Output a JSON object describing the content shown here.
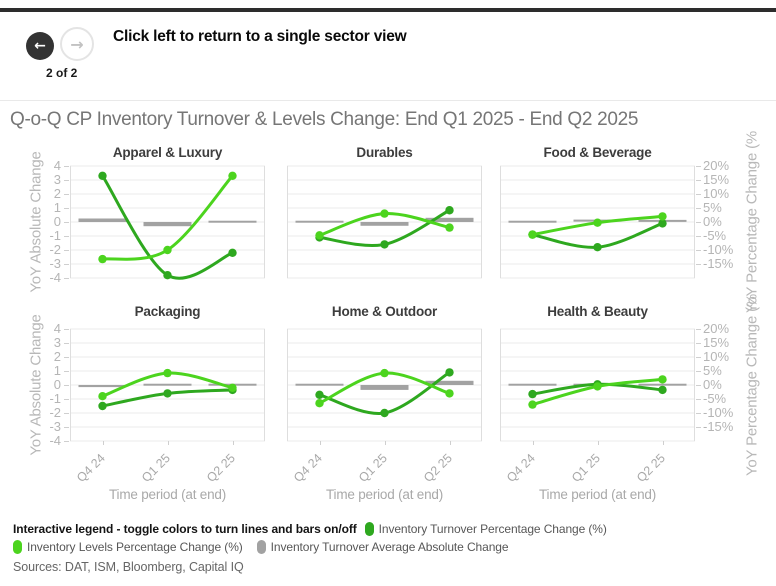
{
  "nav": {
    "caption": "Click left to return to a single sector view",
    "page_indicator": "2 of 2",
    "back_icon": "←",
    "forward_icon": "→"
  },
  "header": {
    "title": "Q-o-Q CP Inventory Turnover & Levels Change: End Q1 2025 - End Q2 2025"
  },
  "legend": {
    "heading": "Interactive legend - toggle colors to turn lines and bars on/off",
    "items": [
      {
        "label": "Inventory Turnover Percentage Change (%)",
        "color": "#2ea81f",
        "kind": "dark-green-line"
      },
      {
        "label": "Inventory Levels Percentage Change (%)",
        "color": "#4cd41e",
        "kind": "bright-green-line"
      },
      {
        "label": "Inventory Turnover Average Absolute Change",
        "color": "#a2a2a2",
        "kind": "gray-bar"
      }
    ]
  },
  "footer": {
    "sources": "Sources: DAT, ISM, Bloomberg, Capital IQ"
  },
  "chart_data": {
    "type": "line",
    "subtype": "2x3 small multiples; spline lines (percentage, right axis) plus short gray bars (absolute, left axis)",
    "categories": [
      "Q4 24",
      "Q1 25",
      "Q2 25"
    ],
    "xlabel": "Time period (at end)",
    "ylabel_left": "YoY Absolute Change",
    "ylabel_right": "YoY Percentage Change (%",
    "left_axis_ticks": [
      "4",
      "3",
      "2",
      "1",
      "0",
      "-1",
      "-2",
      "-3",
      "-4"
    ],
    "right_axis_ticks": [
      "20%",
      "15%",
      "10%",
      "5%",
      "0%",
      "-5%",
      "-10%",
      "-15%"
    ],
    "pct_axis_range": [
      20,
      -20
    ],
    "abs_axis_range": [
      4,
      -4
    ],
    "grid": true,
    "legend_position": "bottom",
    "panels": [
      {
        "title": "Apparel & Luxury",
        "turnover_pct_change": [
          16.5,
          -19,
          -11
        ],
        "levels_pct_change": [
          -13.25,
          -10,
          16.5
        ],
        "turnover_avg_abs_change": [
          0.25,
          -0.3,
          0.02
        ]
      },
      {
        "title": "Durables",
        "turnover_pct_change": [
          -5.5,
          -8,
          4.2
        ],
        "levels_pct_change": [
          -4.75,
          3,
          -2
        ],
        "turnover_avg_abs_change": [
          0.02,
          -0.27,
          0.3
        ]
      },
      {
        "title": "Food & Beverage",
        "turnover_pct_change": [
          -4.5,
          -9,
          -0.5
        ],
        "levels_pct_change": [
          -4.5,
          -0.25,
          2
        ],
        "turnover_avg_abs_change": [
          0.02,
          0.1,
          0.08
        ]
      },
      {
        "title": "Packaging",
        "turnover_pct_change": [
          -7.5,
          -3,
          -1.75
        ],
        "levels_pct_change": [
          -4,
          4.25,
          -1
        ],
        "turnover_avg_abs_change": [
          -0.15,
          0.02,
          0.02
        ]
      },
      {
        "title": "Home & Outdoor",
        "turnover_pct_change": [
          -3.5,
          -10,
          4.5
        ],
        "levels_pct_change": [
          -6.5,
          4.25,
          -3
        ],
        "turnover_avg_abs_change": [
          0.02,
          -0.35,
          0.3
        ]
      },
      {
        "title": "Health & Beauty",
        "turnover_pct_change": [
          -3.25,
          0.25,
          -1.75
        ],
        "levels_pct_change": [
          -7,
          -0.5,
          2
        ],
        "turnover_avg_abs_change": [
          0.02,
          0.02,
          0.02
        ]
      }
    ]
  }
}
